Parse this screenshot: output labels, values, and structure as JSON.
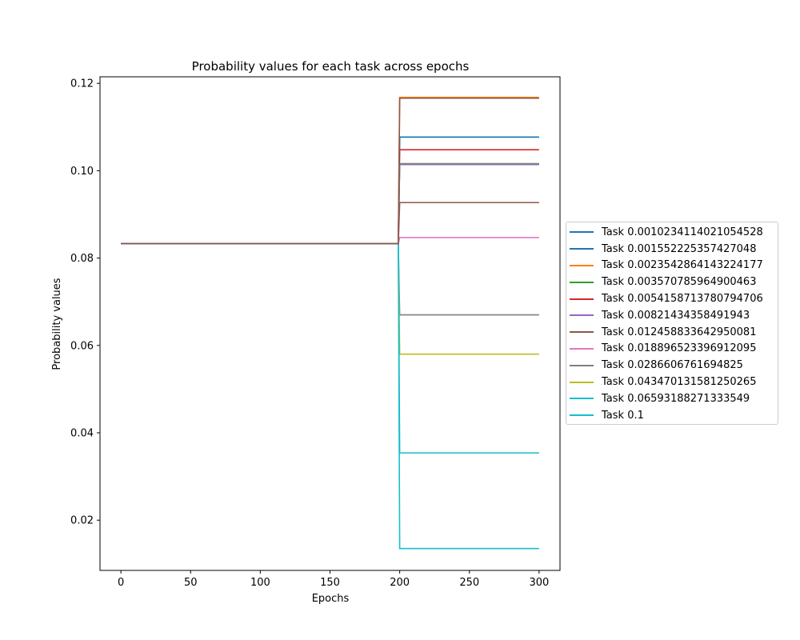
{
  "chart_data": {
    "type": "line",
    "title": "Probability values for each task across epochs",
    "xlabel": "Epochs",
    "ylabel": "Probability values",
    "xlim": [
      -15,
      315
    ],
    "ylim": [
      0.0085,
      0.1215
    ],
    "xticks": [
      0,
      50,
      100,
      150,
      200,
      250,
      300
    ],
    "yticks": [
      0.02,
      0.04,
      0.06,
      0.08,
      0.1,
      0.12
    ],
    "ytick_labels": [
      "0.02",
      "0.04",
      "0.06",
      "0.08",
      "0.10",
      "0.12"
    ],
    "grid": false,
    "legend_position": "center-left outside right",
    "initial_value": 0.0833,
    "switch_epoch": 199,
    "jump_epoch": 200,
    "end_epoch": 300,
    "series": [
      {
        "name": "Task 0.0010234114021054528",
        "color": "#1f77b4",
        "final": 0.1077
      },
      {
        "name": "Task 0.001552225357427048",
        "color": "#1f77b4",
        "final": 0.1077
      },
      {
        "name": "Task 0.0023542864143224177",
        "color": "#ff7f0e",
        "final": 0.1168
      },
      {
        "name": "Task 0.003570785964900463",
        "color": "#2ca02c",
        "final": 0.1016
      },
      {
        "name": "Task 0.0054158713780794706",
        "color": "#d62728",
        "final": 0.1048
      },
      {
        "name": "Task 0.00821434358491943",
        "color": "#9467bd",
        "final": 0.1014
      },
      {
        "name": "Task 0.012458833642950081",
        "color": "#8c564b",
        "final": 0.0927
      },
      {
        "name": "Task 0.018896523396912095",
        "color": "#e377c2",
        "final": 0.0847
      },
      {
        "name": "Task 0.0286606761694825",
        "color": "#7f7f7f",
        "final": 0.067
      },
      {
        "name": "Task 0.043470131581250265",
        "color": "#bcbd22",
        "final": 0.058
      },
      {
        "name": "Task 0.06593188271333549",
        "color": "#17becf",
        "final": 0.0354
      },
      {
        "name": "Task 0.1",
        "color": "#17becf",
        "final": 0.0135
      }
    ],
    "overlay_lines": [
      {
        "color": "#7f7f7f",
        "final": 0.1016
      },
      {
        "color": "#8c564b",
        "final": 0.1166
      }
    ]
  }
}
